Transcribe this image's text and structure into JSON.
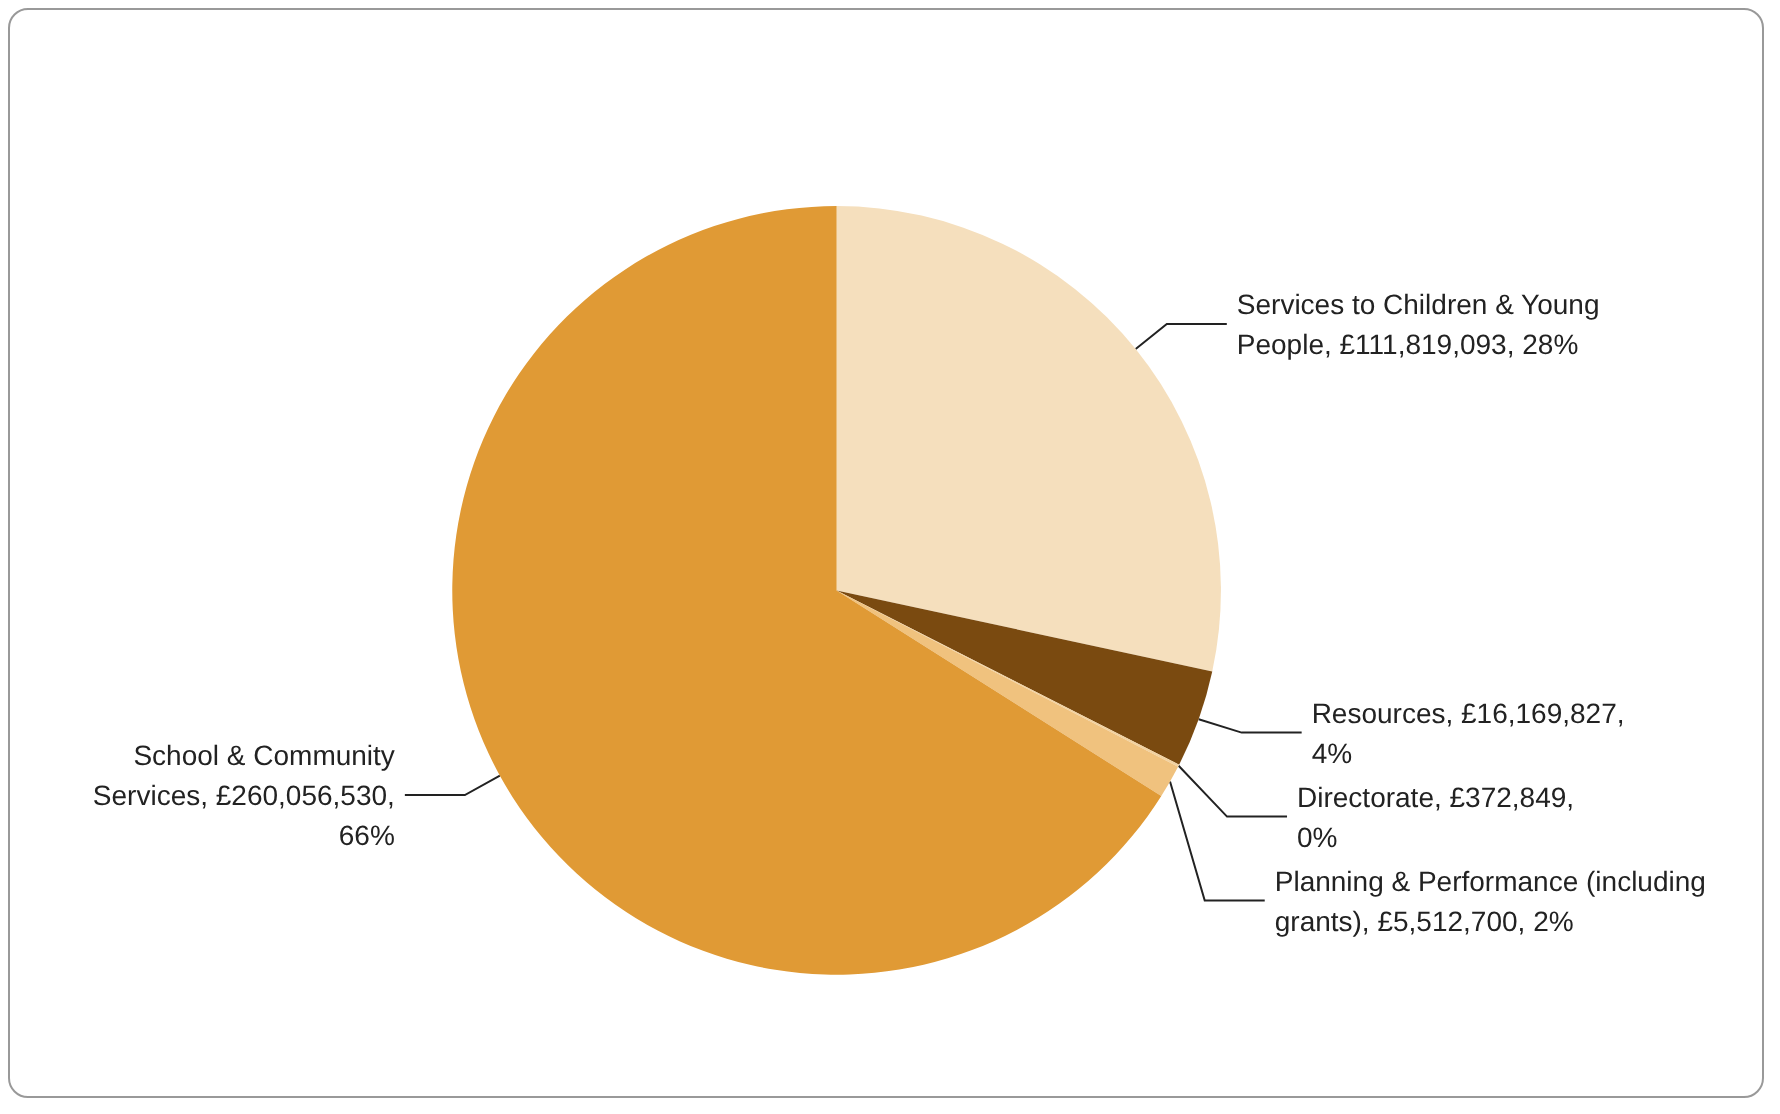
{
  "chart_data": {
    "type": "pie",
    "categories": [
      "Services to Children & Young People",
      "Resources",
      "Directorate",
      "Planning & Performance (including grants)",
      "School & Community Services"
    ],
    "values": [
      111819093,
      16169827,
      372849,
      5512700,
      260056530
    ],
    "colors": [
      "#f5dfbd",
      "#7a4a10",
      "#f2d2a0",
      "#f0c27e",
      "#e09a35"
    ],
    "value_labels": [
      "£111,819,093, 28%",
      "£16,169,827, 4%",
      "£372,849, 0%",
      "£5,512,700, 2%",
      "£260,056,530, 66%"
    ],
    "legend": false
  }
}
